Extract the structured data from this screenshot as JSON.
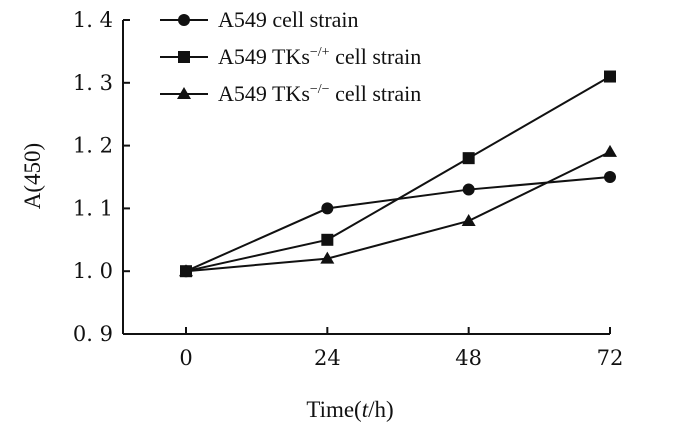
{
  "chart_data": {
    "type": "line",
    "x": [
      0,
      24,
      48,
      72
    ],
    "xlabel": "Time(t/h)",
    "xlabel_parts": [
      "Time(",
      "t",
      "/h)"
    ],
    "ylabel": "A(450)",
    "xlim": [
      0,
      72
    ],
    "ylim": [
      0.9,
      1.4
    ],
    "x_ticks": [
      "0",
      "24",
      "48",
      "72"
    ],
    "y_ticks": [
      "0.9",
      "1.0",
      "1.1",
      "1.2",
      "1.3",
      "1.4"
    ],
    "y_tick_values": [
      0.9,
      1.0,
      1.1,
      1.2,
      1.3,
      1.4
    ],
    "grid": false,
    "legend_position": "top-center",
    "series": [
      {
        "name": "A549 cell strain",
        "name_parts": [
          "A549 cell strain",
          "",
          ""
        ],
        "marker": "circle",
        "values": [
          1.0,
          1.1,
          1.13,
          1.15
        ]
      },
      {
        "name": "A549 TKs−/+ cell strain",
        "name_parts": [
          "A549  TKs",
          "−/+",
          " cell strain"
        ],
        "marker": "square",
        "values": [
          1.0,
          1.05,
          1.18,
          1.31
        ]
      },
      {
        "name": "A549 TKs−/− cell strain",
        "name_parts": [
          "A549  TKs",
          "−/−",
          " cell strain"
        ],
        "marker": "triangle",
        "values": [
          1.0,
          1.02,
          1.08,
          1.19
        ]
      }
    ],
    "colors": {
      "line": "#111111",
      "axis": "#111111"
    }
  }
}
